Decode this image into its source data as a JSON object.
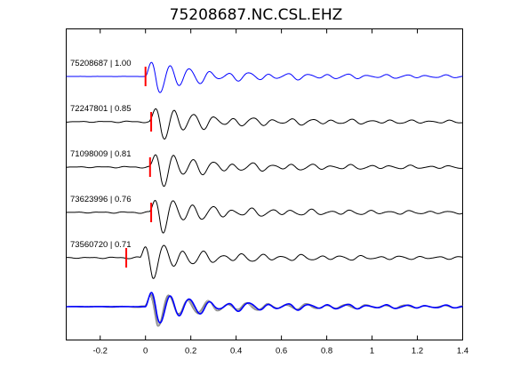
{
  "chart_data": {
    "type": "line",
    "title": "75208687.NC.CSL.EHZ",
    "xlabel": "",
    "ylabel": "",
    "xlim": [
      -0.35,
      1.4
    ],
    "xticks": [
      -0.2,
      0,
      0.2,
      0.4,
      0.6,
      0.8,
      1,
      1.2,
      1.4
    ],
    "xtick_labels": [
      "-0.2",
      "0",
      "0.2",
      "0.4",
      "0.6",
      "0.8",
      "1",
      "1.2",
      "1.4"
    ],
    "grid": false,
    "colors": {
      "reference": "#0000ff",
      "trace": "#000000",
      "overlay": "#888888",
      "pick": "#ff0000"
    },
    "traces": [
      {
        "label": "75208687 | 1.00",
        "pick_time": 0.0,
        "offset": 0.0,
        "phase": 0.0,
        "color": "reference"
      },
      {
        "label": "72247801 | 0.85",
        "pick_time": 0.025,
        "offset": 0.02,
        "phase": 0.4,
        "color": "trace"
      },
      {
        "label": "71098009 | 0.81",
        "pick_time": 0.02,
        "offset": 0.02,
        "phase": 0.9,
        "color": "trace"
      },
      {
        "label": "73623996 | 0.76",
        "pick_time": 0.025,
        "offset": 0.02,
        "phase": 1.4,
        "color": "trace"
      },
      {
        "label": "73560720 | 0.71",
        "pick_time": -0.085,
        "offset": -0.02,
        "phase": 1.9,
        "color": "trace"
      }
    ],
    "stack": {
      "description": "",
      "phase_spread": [
        0.0,
        0.4,
        0.9,
        1.4,
        1.9
      ]
    }
  }
}
